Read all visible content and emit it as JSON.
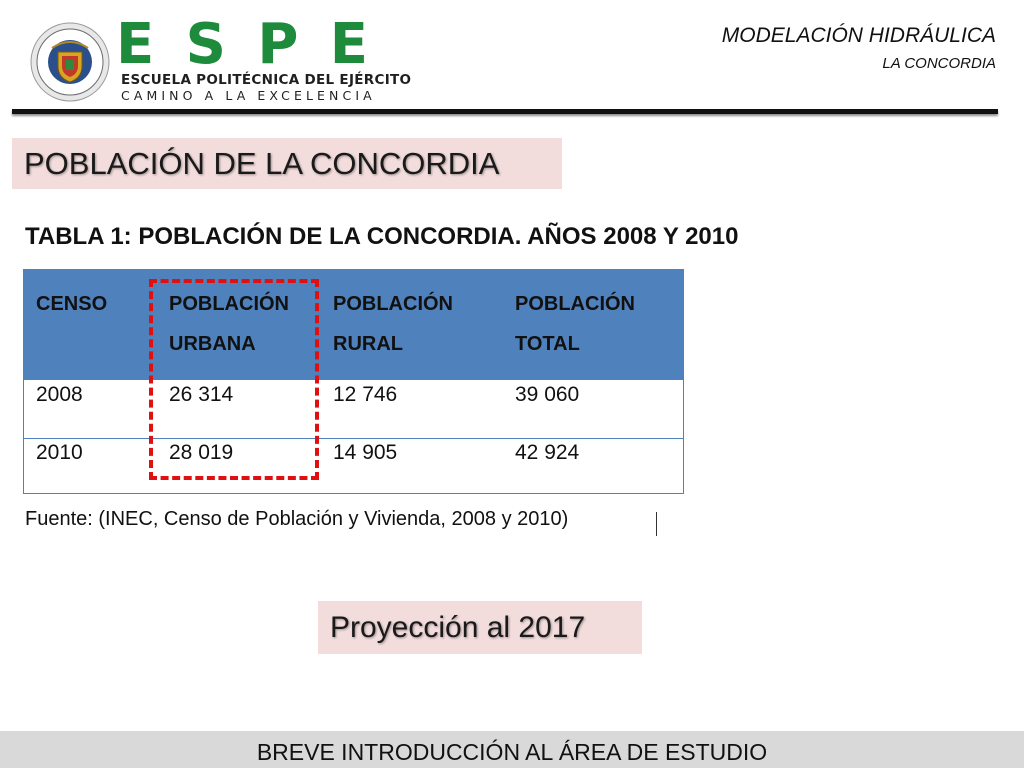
{
  "header": {
    "brand_letters": [
      "E",
      "S",
      "P",
      "E"
    ],
    "brand_name": "ESCUELA POLITÉCNICA DEL EJÉRCITO",
    "motto": "CAMINO A LA EXCELENCIA",
    "seal_icon": "institution-seal-icon",
    "course_title": "MODELACIÓN HIDRÁULICA",
    "course_subtitle": "LA CONCORDIA"
  },
  "section_title": "POBLACIÓN DE LA CONCORDIA",
  "table": {
    "caption": "TABLA 1: POBLACIÓN DE LA CONCORDIA. AÑOS 2008 Y 2010",
    "headers": [
      [
        "CENSO",
        ""
      ],
      [
        "POBLACIÓN",
        "URBANA"
      ],
      [
        "POBLACIÓN",
        "RURAL"
      ],
      [
        "POBLACIÓN",
        "TOTAL"
      ]
    ],
    "rows": [
      [
        "2008",
        "26 314",
        "12 746",
        "39 060"
      ],
      [
        "2010",
        "28 019",
        "14 905",
        "42 924"
      ]
    ],
    "highlight_color": "#e01010",
    "header_color": "#4f81bd"
  },
  "source_note": "Fuente: (INEC, Censo de Población y Vivienda, 2008 y 2010)",
  "projection_label": "Proyección al 2017",
  "footer": "BREVE INTRODUCCIÓN AL ÁREA DE ESTUDIO",
  "colors": {
    "brand_green": "#1e8a3c",
    "label_bg": "#f2dcdc",
    "footer_bg": "#d9d9d9"
  }
}
